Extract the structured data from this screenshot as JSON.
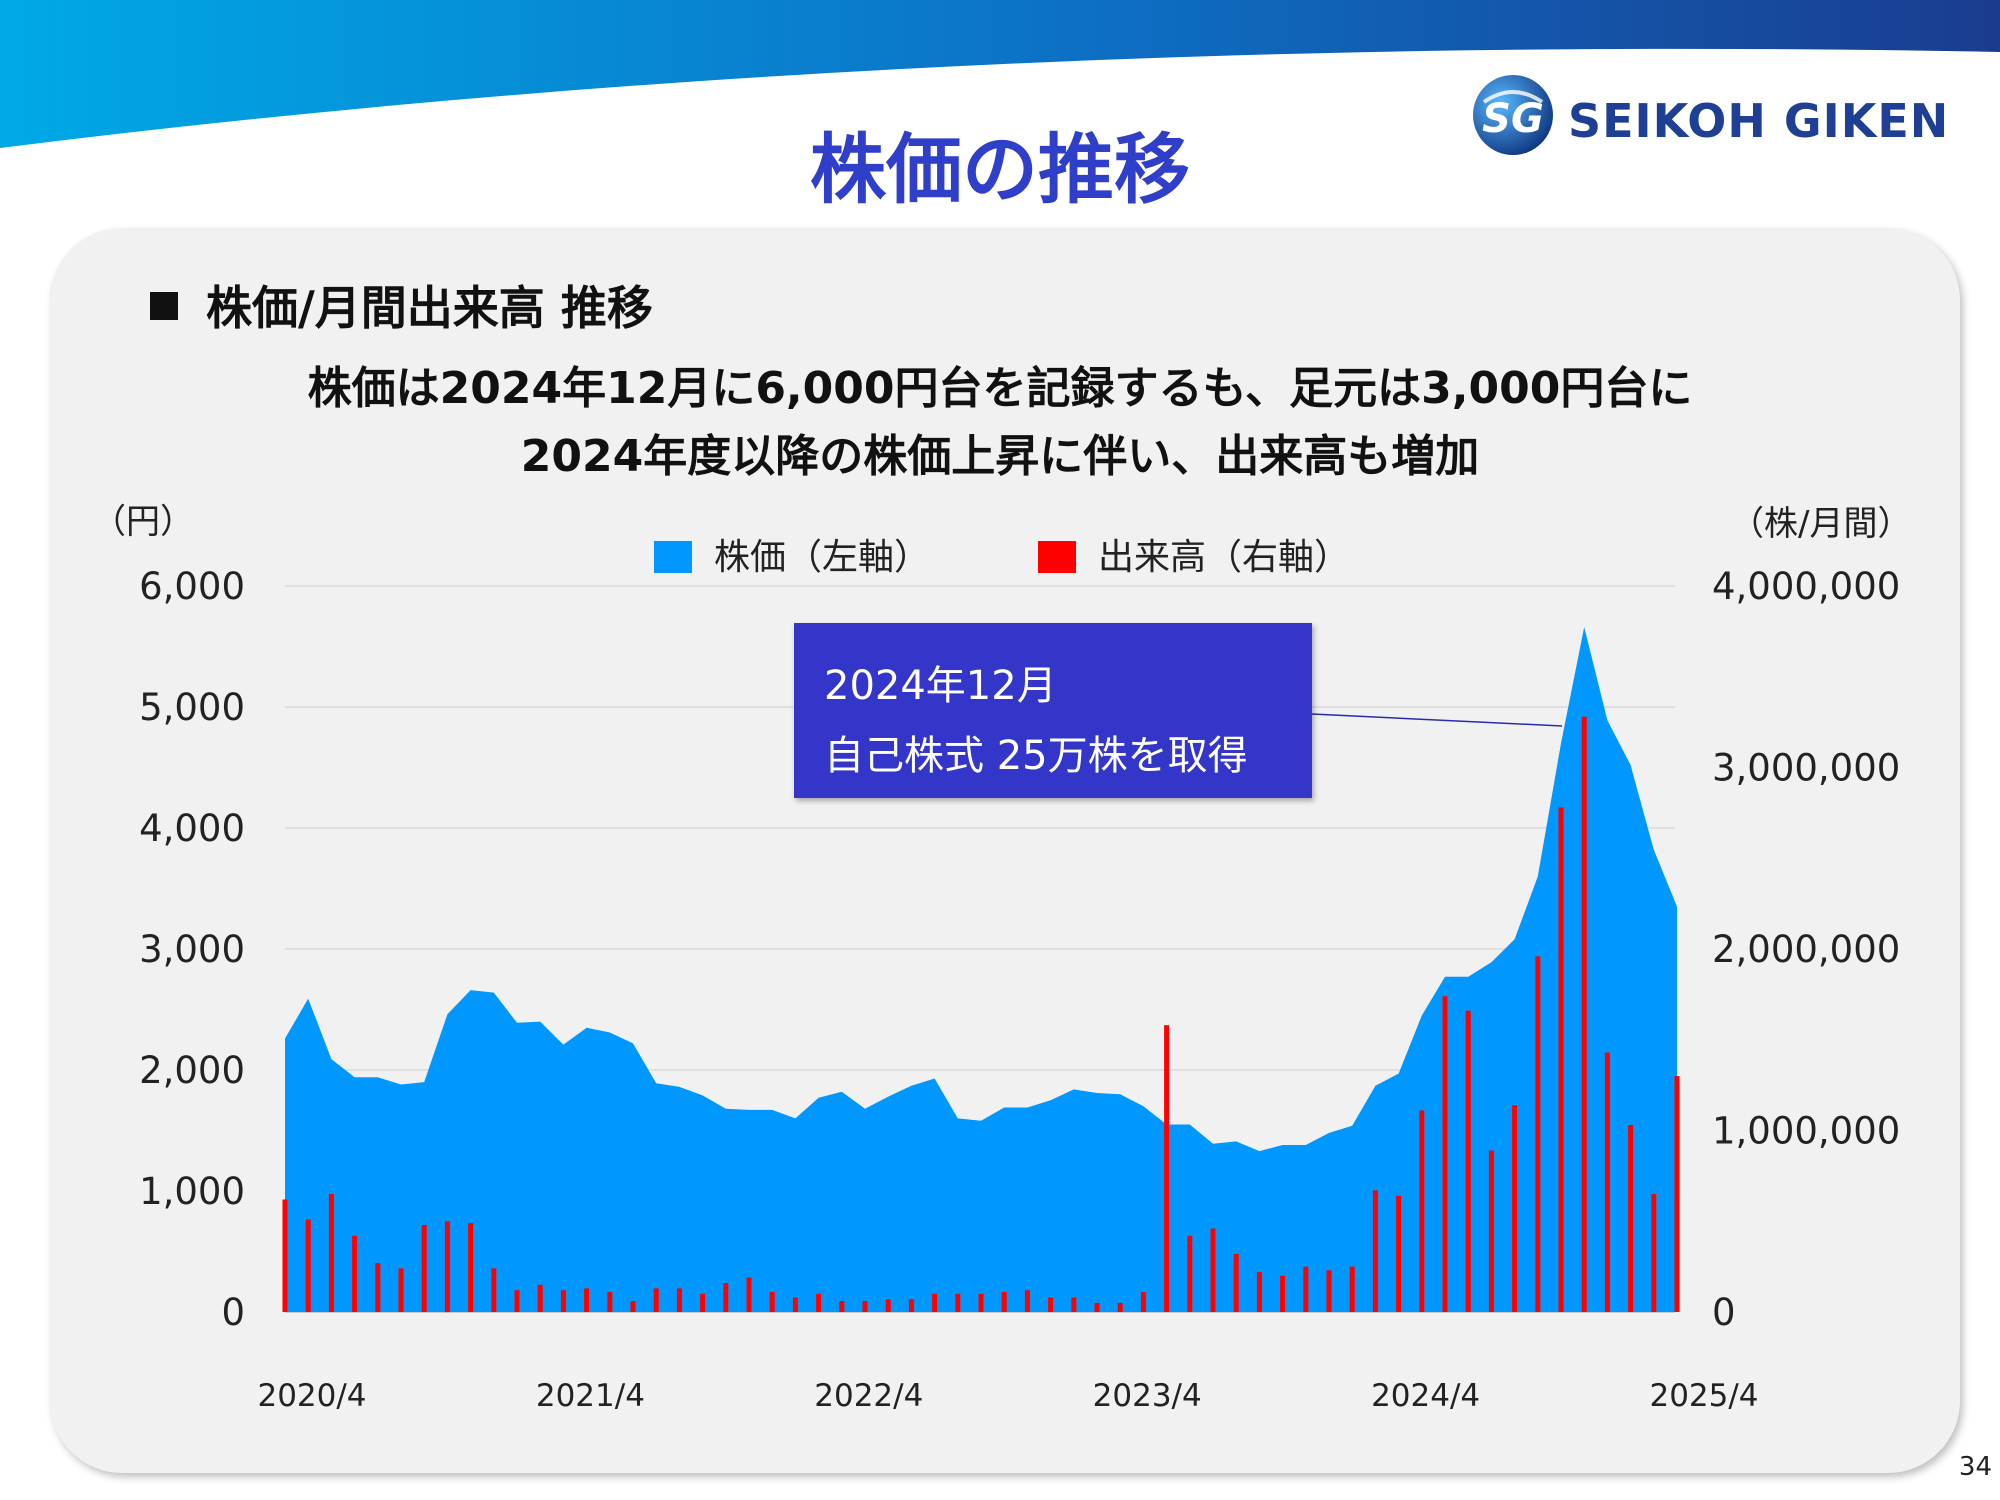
{
  "page_title": "株価の推移",
  "section_heading": "株価/月間出来高 推移",
  "summary": {
    "line1": "株価は2024年12月に6,000円台を記録するも、足元は3,000円台に",
    "line2": "2024年度以降の株価上昇に伴い、出来高も増加"
  },
  "logo": {
    "text": "SEIKOH GIKEN",
    "mark_text": "SG"
  },
  "page_number": "34",
  "callout": {
    "line1": "2024年12月",
    "line2": "自己株式 25万株を取得"
  },
  "colors": {
    "title": "#2f3fc9",
    "price_area": "#0098ff",
    "volume_bar": "#ff0000",
    "callout_bg": "#3436c9",
    "panel_bg": "#f1f1f1"
  },
  "chart_data": {
    "type": "area+bar",
    "y_left_unit": "（円）",
    "y_right_unit": "（株/月間）",
    "y_left_range": [
      0,
      6000
    ],
    "y_right_range": [
      0,
      4000000
    ],
    "y_left_ticks": [
      "6,000",
      "5,000",
      "4,000",
      "3,000",
      "2,000",
      "1,000",
      "0"
    ],
    "y_right_ticks": [
      "4,000,000",
      "3,000,000",
      "2,000,000",
      "1,000,000",
      "0"
    ],
    "x_tick_labels": [
      "2020/4",
      "2021/4",
      "2022/4",
      "2023/4",
      "2024/4",
      "2025/4"
    ],
    "grid": true,
    "legend_position": "top-center",
    "months": [
      "2020/4",
      "2020/5",
      "2020/6",
      "2020/7",
      "2020/8",
      "2020/9",
      "2020/10",
      "2020/11",
      "2020/12",
      "2021/1",
      "2021/2",
      "2021/3",
      "2021/4",
      "2021/5",
      "2021/6",
      "2021/7",
      "2021/8",
      "2021/9",
      "2021/10",
      "2021/11",
      "2021/12",
      "2022/1",
      "2022/2",
      "2022/3",
      "2022/4",
      "2022/5",
      "2022/6",
      "2022/7",
      "2022/8",
      "2022/9",
      "2022/10",
      "2022/11",
      "2022/12",
      "2023/1",
      "2023/2",
      "2023/3",
      "2023/4",
      "2023/5",
      "2023/6",
      "2023/7",
      "2023/8",
      "2023/9",
      "2023/10",
      "2023/11",
      "2023/12",
      "2024/1",
      "2024/2",
      "2024/3",
      "2024/4",
      "2024/5",
      "2024/6",
      "2024/7",
      "2024/8",
      "2024/9",
      "2024/10",
      "2024/11",
      "2024/12",
      "2025/1",
      "2025/2",
      "2025/3",
      "2025/4"
    ],
    "series": [
      {
        "name": "株価（左軸）",
        "type": "area",
        "axis": "left",
        "values": [
          2260,
          2590,
          2090,
          1940,
          1940,
          1880,
          1900,
          2460,
          2660,
          2640,
          2390,
          2400,
          2210,
          2350,
          2310,
          2220,
          1890,
          1860,
          1790,
          1680,
          1670,
          1670,
          1600,
          1770,
          1820,
          1680,
          1780,
          1870,
          1930,
          1600,
          1580,
          1690,
          1690,
          1750,
          1840,
          1810,
          1800,
          1700,
          1550,
          1550,
          1390,
          1410,
          1330,
          1380,
          1380,
          1480,
          1540,
          1870,
          1970,
          2450,
          2770,
          2770,
          2890,
          3080,
          3600,
          4700,
          5660,
          4890,
          4520,
          3820,
          3350
        ]
      },
      {
        "name": "出来高（右軸）",
        "type": "bar",
        "axis": "right",
        "values": [
          620000,
          510000,
          650000,
          420000,
          270000,
          240000,
          480000,
          500000,
          490000,
          240000,
          120000,
          150000,
          120000,
          130000,
          110000,
          60000,
          130000,
          130000,
          100000,
          160000,
          190000,
          110000,
          80000,
          100000,
          60000,
          60000,
          70000,
          70000,
          100000,
          100000,
          100000,
          110000,
          120000,
          80000,
          80000,
          50000,
          50000,
          110000,
          1580000,
          420000,
          460000,
          320000,
          220000,
          200000,
          250000,
          230000,
          250000,
          670000,
          640000,
          1110000,
          1740000,
          1660000,
          890000,
          1140000,
          1960000,
          2780000,
          3280000,
          1430000,
          1030000,
          650000,
          1300000
        ]
      }
    ]
  }
}
